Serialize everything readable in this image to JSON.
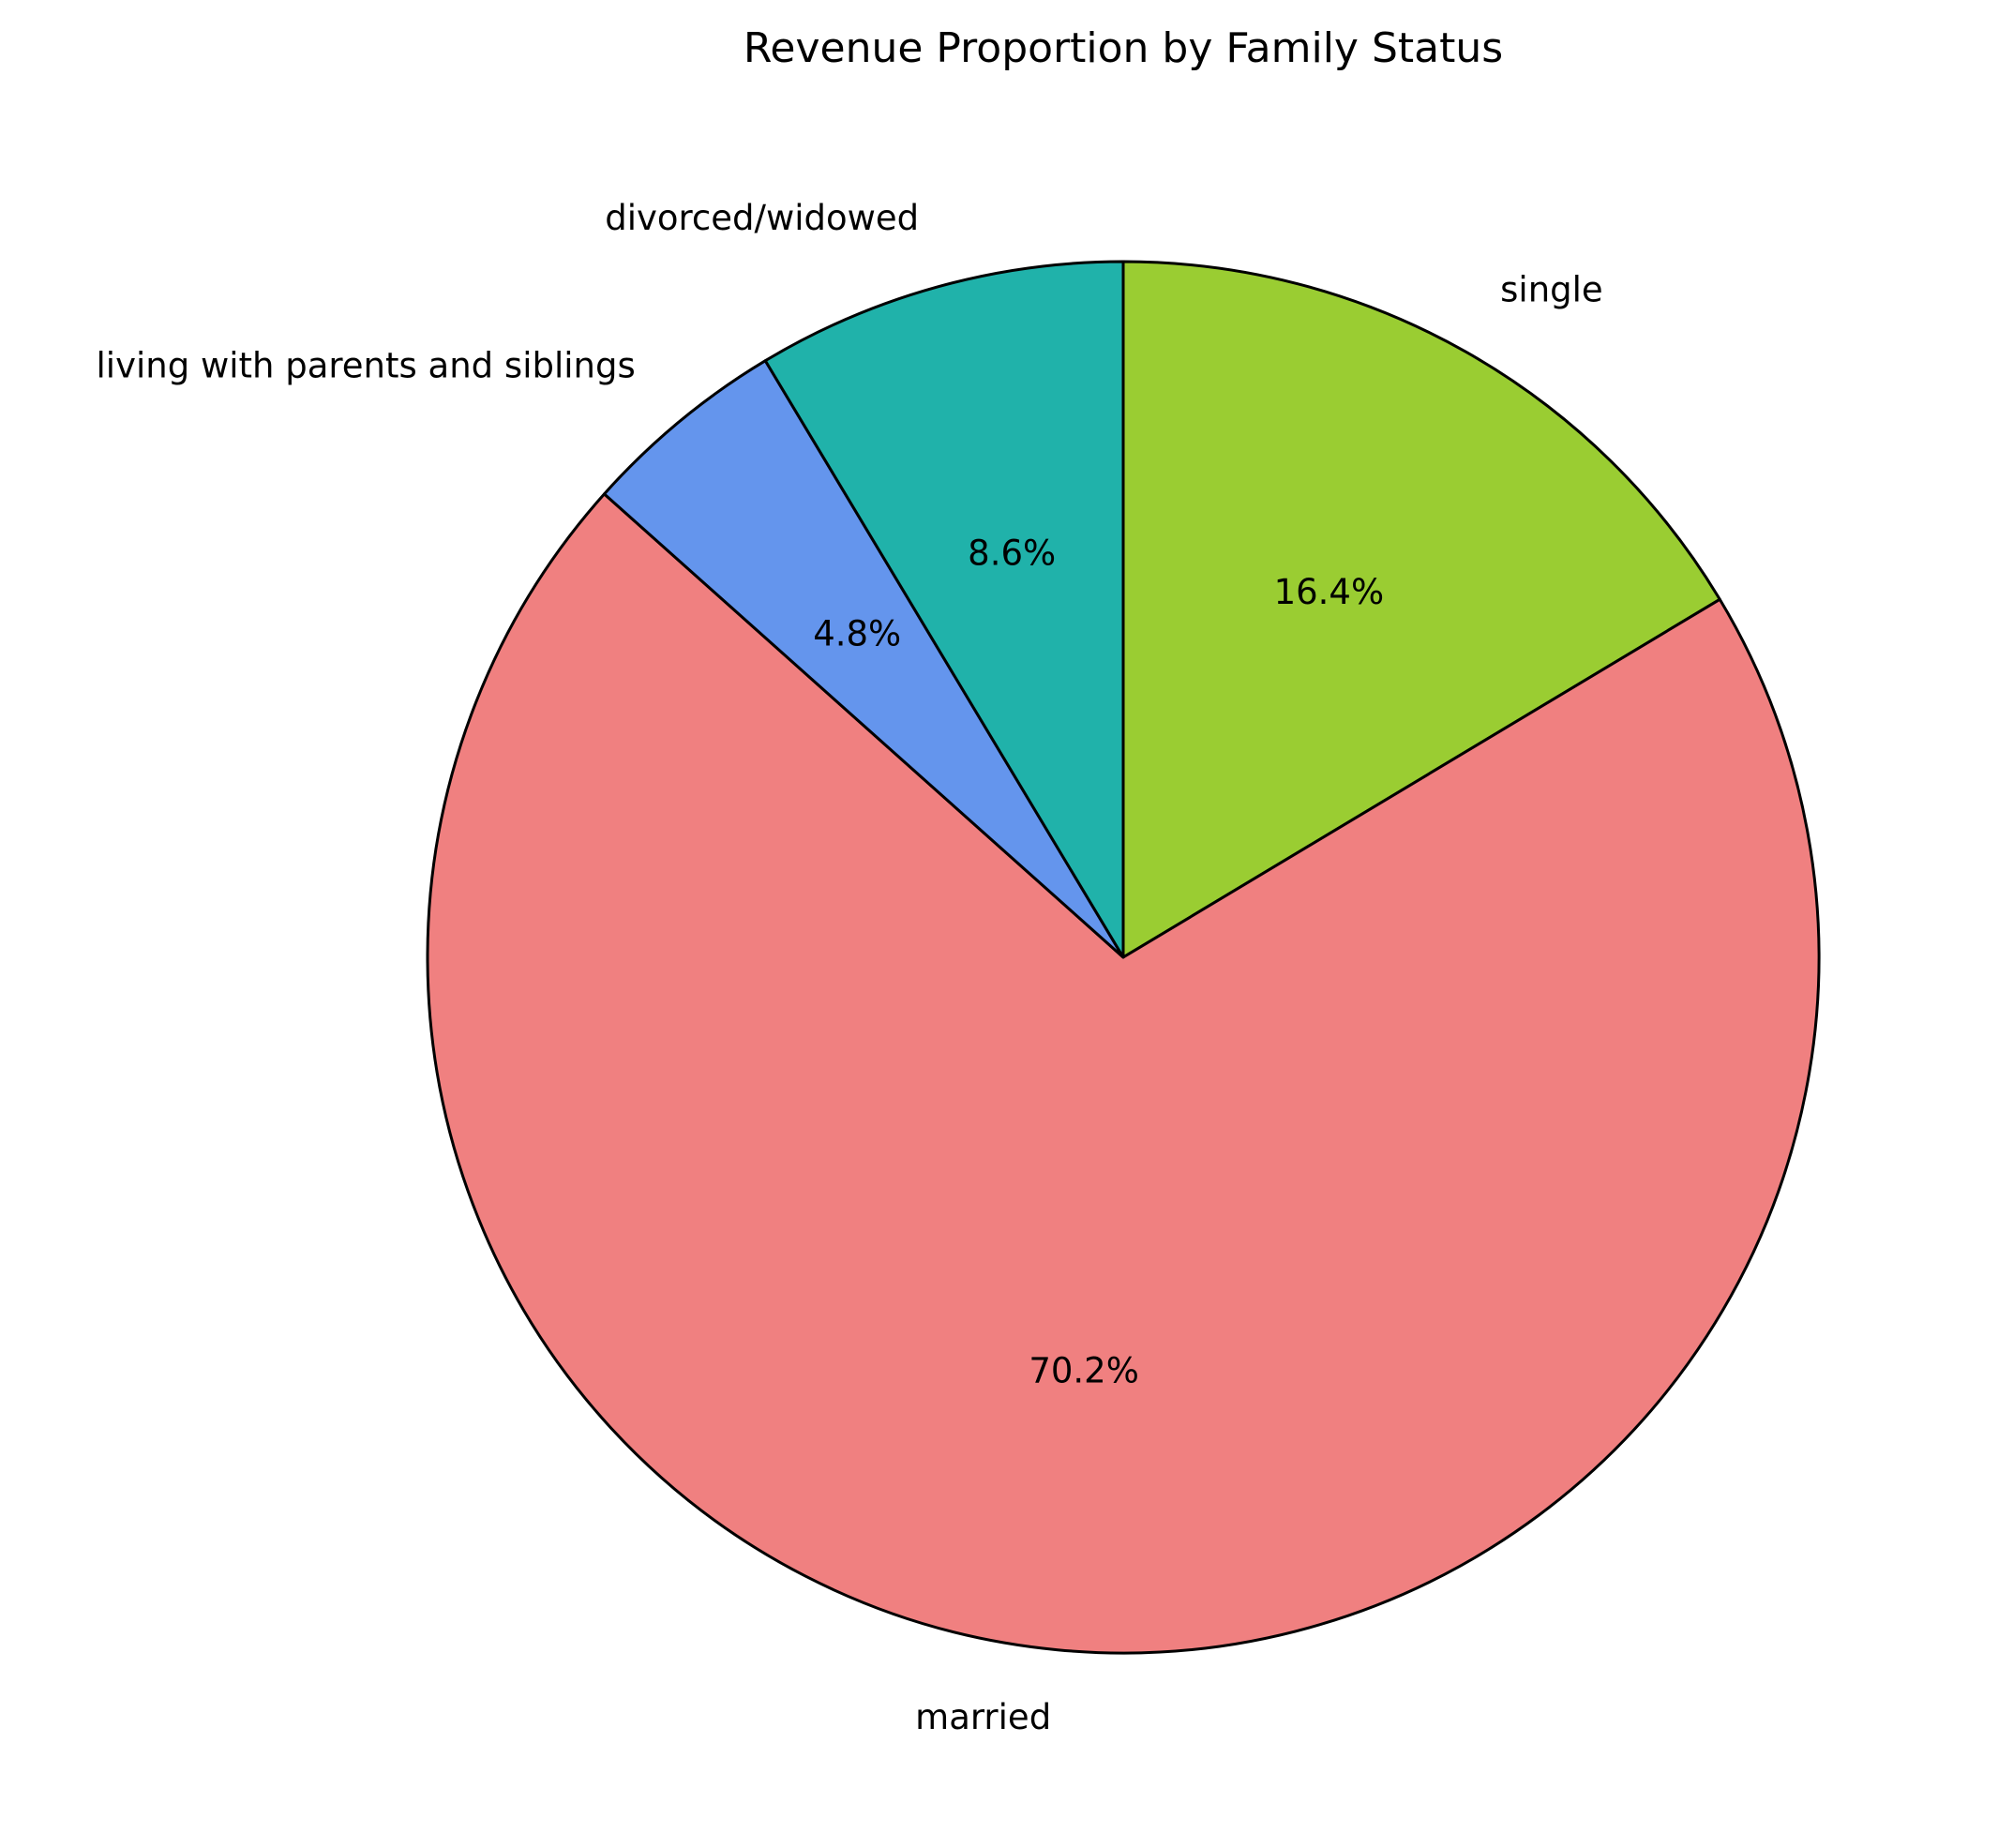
{
  "chart_data": {
    "type": "pie",
    "title": "Revenue Proportion by Family Status",
    "start_angle_deg": 90,
    "direction": "clockwise",
    "slices": [
      {
        "label": "single",
        "value": 16.4,
        "pct_label": "16.4%",
        "color": "#9ACD32"
      },
      {
        "label": "married",
        "value": 70.2,
        "pct_label": "70.2%",
        "color": "#F08080"
      },
      {
        "label": "living with parents and siblings",
        "value": 4.8,
        "pct_label": "4.8%",
        "color": "#6495ED"
      },
      {
        "label": "divorced/widowed",
        "value": 8.6,
        "pct_label": "8.6%",
        "color": "#20B2AA"
      }
    ],
    "edge_color": "#000000"
  }
}
